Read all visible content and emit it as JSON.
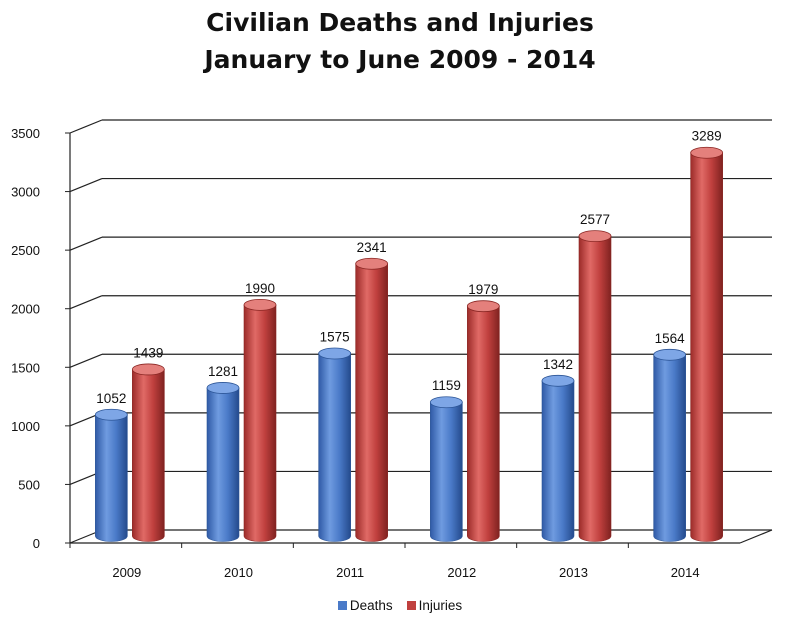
{
  "chart_data": {
    "type": "bar",
    "title": "Civilian Deaths and Injuries",
    "subtitle": "January to June 2009 - 2014",
    "categories": [
      "2009",
      "2010",
      "2011",
      "2012",
      "2013",
      "2014"
    ],
    "series": [
      {
        "name": "Deaths",
        "values": [
          1052,
          1281,
          1575,
          1159,
          1342,
          1564
        ],
        "color": "#4a7ac8"
      },
      {
        "name": "Injuries",
        "values": [
          1439,
          1990,
          2341,
          1979,
          2577,
          3289
        ],
        "color": "#c0403e"
      }
    ],
    "ylim": [
      0,
      3500
    ],
    "yticks": [
      0,
      500,
      1000,
      1500,
      2000,
      2500,
      3000,
      3500
    ],
    "grid": true,
    "legend": "bottom-center",
    "style": "3d-cylinder"
  }
}
